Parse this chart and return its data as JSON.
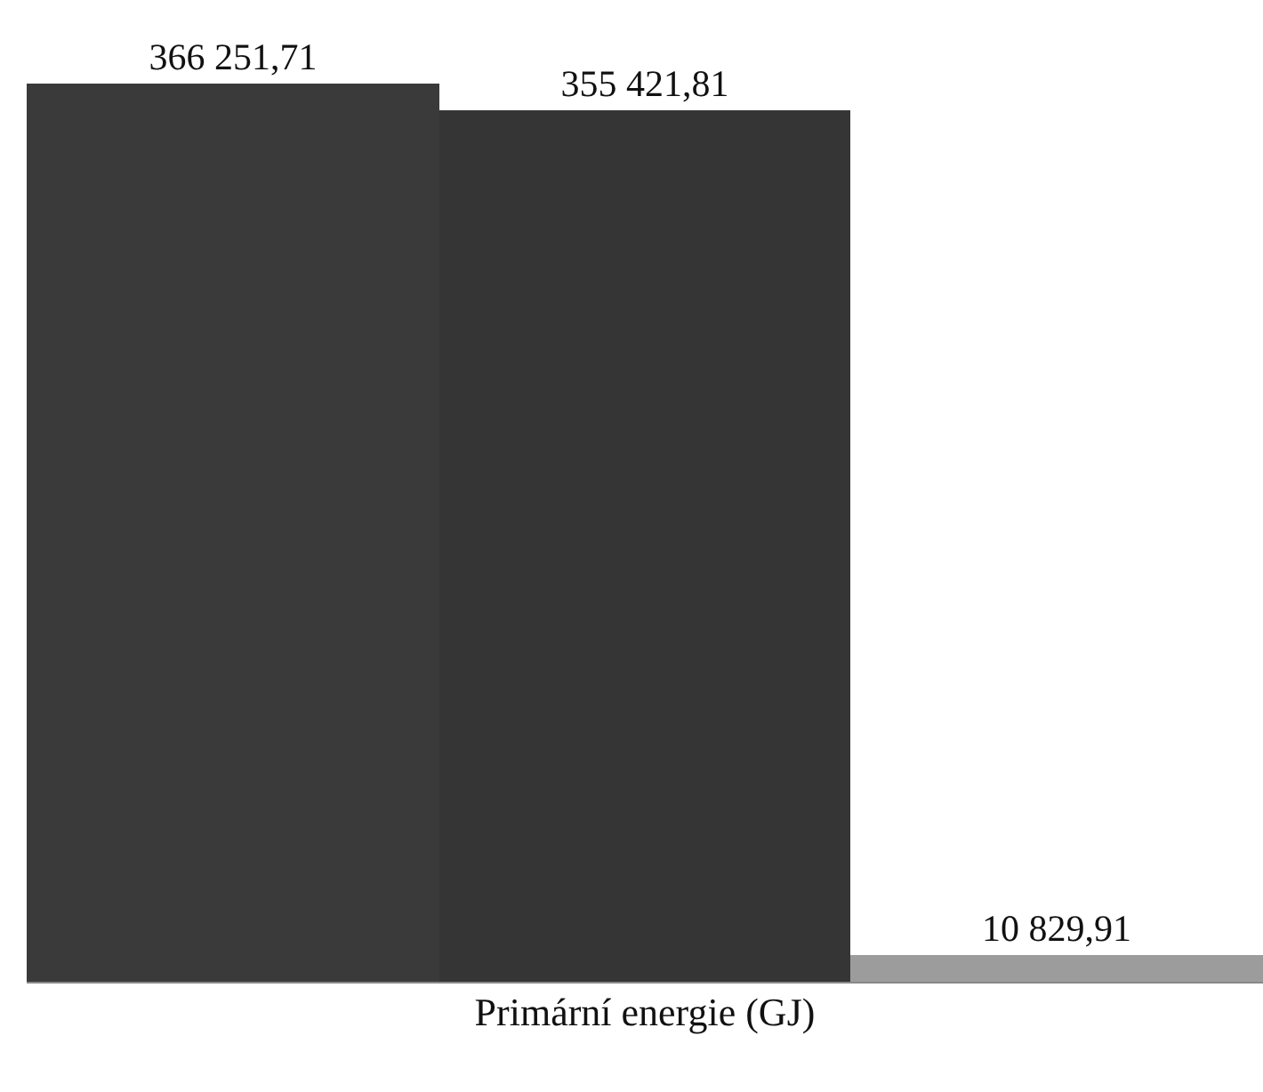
{
  "chart_data": {
    "type": "bar",
    "xlabel": "Primární energie (GJ)",
    "categories": [
      null,
      null,
      null
    ],
    "values": [
      366251.71,
      355421.81,
      10829.91
    ],
    "value_labels": [
      "366 251,71",
      "355 421,81",
      "10 829,91"
    ],
    "colors": [
      "#3a3a3a",
      "#353535",
      "#9c9c9c"
    ]
  }
}
